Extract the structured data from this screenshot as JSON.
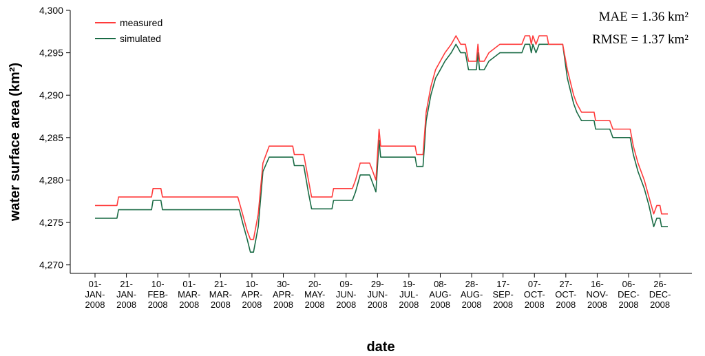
{
  "chart_data": {
    "type": "line",
    "title": "",
    "xlabel": "date",
    "ylabel": "water surface area (km²)",
    "ylim": [
      4269,
      4300
    ],
    "y_ticks": [
      "4,270",
      "4,275",
      "4,280",
      "4,285",
      "4,290",
      "4,295",
      "4,300"
    ],
    "y_tick_values": [
      4270,
      4275,
      4280,
      4285,
      4290,
      4295,
      4300
    ],
    "x_ticks": [
      [
        "01-",
        "JAN-",
        "2008"
      ],
      [
        "21-",
        "JAN-",
        "2008"
      ],
      [
        "10-",
        "FEB-",
        "2008"
      ],
      [
        "01-",
        "MAR-",
        "2008"
      ],
      [
        "21-",
        "MAR-",
        "2008"
      ],
      [
        "10-",
        "APR-",
        "2008"
      ],
      [
        "30-",
        "APR-",
        "2008"
      ],
      [
        "20-",
        "MAY-",
        "2008"
      ],
      [
        "09-",
        "JUN-",
        "2008"
      ],
      [
        "29-",
        "JUN-",
        "2008"
      ],
      [
        "19-",
        "JUL-",
        "2008"
      ],
      [
        "08-",
        "AUG-",
        "2008"
      ],
      [
        "28-",
        "AUG-",
        "2008"
      ],
      [
        "17-",
        "SEP-",
        "2008"
      ],
      [
        "07-",
        "OCT-",
        "2008"
      ],
      [
        "27-",
        "OCT-",
        "2008"
      ],
      [
        "16-",
        "NOV-",
        "2008"
      ],
      [
        "06-",
        "DEC-",
        "2008"
      ],
      [
        "26-",
        "DEC-",
        "2008"
      ]
    ],
    "legend": {
      "position": "top-left"
    },
    "annotations": [
      "MAE = 1.36 km²",
      "RMSE = 1.37 km²"
    ],
    "series": [
      {
        "name": "measured",
        "color": "#ff3b3b",
        "points": [
          [
            "2008-01-01",
            4277
          ],
          [
            "2008-01-15",
            4277
          ],
          [
            "2008-01-16",
            4278
          ],
          [
            "2008-02-06",
            4278
          ],
          [
            "2008-02-07",
            4279
          ],
          [
            "2008-02-12",
            4279
          ],
          [
            "2008-02-13",
            4278
          ],
          [
            "2008-04-01",
            4278
          ],
          [
            "2008-04-04",
            4276
          ],
          [
            "2008-04-07",
            4274
          ],
          [
            "2008-04-09",
            4273
          ],
          [
            "2008-04-11",
            4273
          ],
          [
            "2008-04-14",
            4276
          ],
          [
            "2008-04-17",
            4282
          ],
          [
            "2008-04-21",
            4284
          ],
          [
            "2008-05-06",
            4284
          ],
          [
            "2008-05-07",
            4283
          ],
          [
            "2008-05-13",
            4283
          ],
          [
            "2008-05-16",
            4280
          ],
          [
            "2008-05-18",
            4278
          ],
          [
            "2008-05-31",
            4278
          ],
          [
            "2008-06-01",
            4279
          ],
          [
            "2008-06-13",
            4279
          ],
          [
            "2008-06-15",
            4280
          ],
          [
            "2008-06-18",
            4282
          ],
          [
            "2008-06-24",
            4282
          ],
          [
            "2008-06-26",
            4281
          ],
          [
            "2008-06-28",
            4280
          ],
          [
            "2008-06-30",
            4286
          ],
          [
            "2008-07-01",
            4284
          ],
          [
            "2008-07-23",
            4284
          ],
          [
            "2008-07-24",
            4283
          ],
          [
            "2008-07-28",
            4283
          ],
          [
            "2008-07-30",
            4288
          ],
          [
            "2008-08-02",
            4291
          ],
          [
            "2008-08-05",
            4293
          ],
          [
            "2008-08-08",
            4294
          ],
          [
            "2008-08-11",
            4295
          ],
          [
            "2008-08-15",
            4296
          ],
          [
            "2008-08-18",
            4297
          ],
          [
            "2008-08-21",
            4296
          ],
          [
            "2008-08-24",
            4296
          ],
          [
            "2008-08-26",
            4294
          ],
          [
            "2008-08-31",
            4294
          ],
          [
            "2008-09-01",
            4296
          ],
          [
            "2008-09-02",
            4294
          ],
          [
            "2008-09-05",
            4294
          ],
          [
            "2008-09-08",
            4295
          ],
          [
            "2008-09-15",
            4296
          ],
          [
            "2008-09-29",
            4296
          ],
          [
            "2008-10-01",
            4297
          ],
          [
            "2008-10-04",
            4297
          ],
          [
            "2008-10-05",
            4296
          ],
          [
            "2008-10-06",
            4297
          ],
          [
            "2008-10-08",
            4296
          ],
          [
            "2008-10-10",
            4297
          ],
          [
            "2008-10-15",
            4297
          ],
          [
            "2008-10-16",
            4296
          ],
          [
            "2008-10-25",
            4296
          ],
          [
            "2008-10-28",
            4293
          ],
          [
            "2008-11-01",
            4290
          ],
          [
            "2008-11-03",
            4289
          ],
          [
            "2008-11-06",
            4288
          ],
          [
            "2008-11-14",
            4288
          ],
          [
            "2008-11-15",
            4287
          ],
          [
            "2008-11-24",
            4287
          ],
          [
            "2008-11-26",
            4286
          ],
          [
            "2008-12-07",
            4286
          ],
          [
            "2008-12-09",
            4284
          ],
          [
            "2008-12-12",
            4282
          ],
          [
            "2008-12-16",
            4280
          ],
          [
            "2008-12-19",
            4278
          ],
          [
            "2008-12-22",
            4276
          ],
          [
            "2008-12-24",
            4277
          ],
          [
            "2008-12-26",
            4277
          ],
          [
            "2008-12-27",
            4276
          ],
          [
            "2008-12-31",
            4276
          ]
        ]
      },
      {
        "name": "simulated",
        "color": "#1a6b45",
        "points": [
          [
            "2008-01-01",
            4275.5
          ],
          [
            "2008-01-15",
            4275.5
          ],
          [
            "2008-01-16",
            4276.5
          ],
          [
            "2008-02-06",
            4276.5
          ],
          [
            "2008-02-07",
            4277.6
          ],
          [
            "2008-02-12",
            4277.6
          ],
          [
            "2008-02-13",
            4276.5
          ],
          [
            "2008-04-02",
            4276.5
          ],
          [
            "2008-04-04",
            4275
          ],
          [
            "2008-04-07",
            4273
          ],
          [
            "2008-04-09",
            4271.5
          ],
          [
            "2008-04-11",
            4271.5
          ],
          [
            "2008-04-14",
            4274.5
          ],
          [
            "2008-04-17",
            4281
          ],
          [
            "2008-04-21",
            4282.7
          ],
          [
            "2008-05-06",
            4282.7
          ],
          [
            "2008-05-07",
            4281.7
          ],
          [
            "2008-05-13",
            4281.7
          ],
          [
            "2008-05-16",
            4278.5
          ],
          [
            "2008-05-18",
            4276.6
          ],
          [
            "2008-05-31",
            4276.6
          ],
          [
            "2008-06-01",
            4277.6
          ],
          [
            "2008-06-13",
            4277.6
          ],
          [
            "2008-06-15",
            4278.6
          ],
          [
            "2008-06-18",
            4280.6
          ],
          [
            "2008-06-24",
            4280.6
          ],
          [
            "2008-06-26",
            4279.6
          ],
          [
            "2008-06-28",
            4278.6
          ],
          [
            "2008-06-30",
            4284.7
          ],
          [
            "2008-07-01",
            4282.7
          ],
          [
            "2008-07-23",
            4282.7
          ],
          [
            "2008-07-24",
            4281.6
          ],
          [
            "2008-07-28",
            4281.6
          ],
          [
            "2008-07-30",
            4287
          ],
          [
            "2008-08-02",
            4290
          ],
          [
            "2008-08-05",
            4292
          ],
          [
            "2008-08-08",
            4293
          ],
          [
            "2008-08-11",
            4294
          ],
          [
            "2008-08-15",
            4295
          ],
          [
            "2008-08-18",
            4296
          ],
          [
            "2008-08-21",
            4295
          ],
          [
            "2008-08-24",
            4295
          ],
          [
            "2008-08-26",
            4293
          ],
          [
            "2008-08-31",
            4293
          ],
          [
            "2008-09-01",
            4295
          ],
          [
            "2008-09-02",
            4293
          ],
          [
            "2008-09-05",
            4293
          ],
          [
            "2008-09-08",
            4294
          ],
          [
            "2008-09-15",
            4295
          ],
          [
            "2008-09-29",
            4295
          ],
          [
            "2008-10-01",
            4296
          ],
          [
            "2008-10-04",
            4296
          ],
          [
            "2008-10-05",
            4295
          ],
          [
            "2008-10-06",
            4296
          ],
          [
            "2008-10-08",
            4295
          ],
          [
            "2008-10-10",
            4296
          ],
          [
            "2008-10-25",
            4296
          ],
          [
            "2008-10-28",
            4292
          ],
          [
            "2008-11-01",
            4289
          ],
          [
            "2008-11-03",
            4288
          ],
          [
            "2008-11-06",
            4287
          ],
          [
            "2008-11-14",
            4287
          ],
          [
            "2008-11-15",
            4286
          ],
          [
            "2008-11-24",
            4286
          ],
          [
            "2008-11-26",
            4285
          ],
          [
            "2008-12-07",
            4285
          ],
          [
            "2008-12-09",
            4283
          ],
          [
            "2008-12-12",
            4281
          ],
          [
            "2008-12-16",
            4279
          ],
          [
            "2008-12-19",
            4277
          ],
          [
            "2008-12-22",
            4274.5
          ],
          [
            "2008-12-24",
            4275.5
          ],
          [
            "2008-12-26",
            4275.5
          ],
          [
            "2008-12-27",
            4274.5
          ],
          [
            "2008-12-31",
            4274.5
          ]
        ]
      }
    ]
  }
}
